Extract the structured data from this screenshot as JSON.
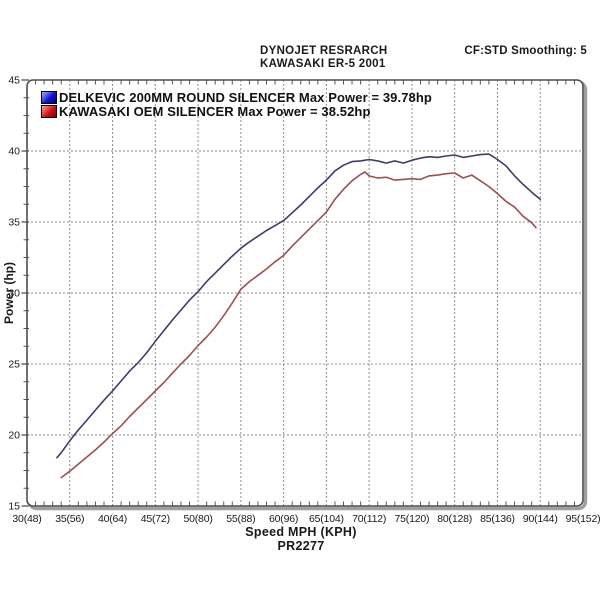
{
  "header": {
    "title_line1": "DYNOJET RESRARCH",
    "title_line2": "KAWASAKI ER-5 2001",
    "top_right_note": "CF:STD Smoothing: 5"
  },
  "footer": {
    "xaxis_title": "Speed MPH (KPH)",
    "run_id": "PR2277"
  },
  "colors": {
    "delkevic_line": "#3d3d66",
    "oem_line": "#9b5151",
    "grid": "#8c8c8c",
    "box_border": "#4f4f4f",
    "box_shadow": "#9e9e9e",
    "text": "#1a1a1a"
  },
  "chart_data": {
    "type": "line",
    "title": "DYNOJET RESRARCH / KAWASAKI ER-5 2001",
    "xlabel": "Speed MPH (KPH)",
    "ylabel": "Power (hp)",
    "xlim": [
      30,
      95
    ],
    "ylim": [
      15,
      45
    ],
    "x_major_step": 5,
    "x_minor_step": 1,
    "y_major_step": 5,
    "y_minors_per_major": 3,
    "grid": "dashed gray at major intervals, both axes",
    "legend_position": "top-left inside plot",
    "x_ticks": [
      {
        "mph": 30,
        "label": "30(48)"
      },
      {
        "mph": 35,
        "label": "35(56)"
      },
      {
        "mph": 40,
        "label": "40(64)"
      },
      {
        "mph": 45,
        "label": "45(72)"
      },
      {
        "mph": 50,
        "label": "50(80)"
      },
      {
        "mph": 55,
        "label": "55(88)"
      },
      {
        "mph": 60,
        "label": "60(96)"
      },
      {
        "mph": 65,
        "label": "65(104)"
      },
      {
        "mph": 70,
        "label": "70(112)"
      },
      {
        "mph": 75,
        "label": "75(120)"
      },
      {
        "mph": 80,
        "label": "80(128)"
      },
      {
        "mph": 85,
        "label": "85(136)"
      },
      {
        "mph": 90,
        "label": "90(144)"
      },
      {
        "mph": 95,
        "label": "95(152)"
      }
    ],
    "y_ticks": [
      15,
      20,
      25,
      30,
      35,
      40,
      45
    ],
    "series": [
      {
        "name": "DELKEVIC 200MM ROUND SILENCER",
        "legend_label": "DELKEVIC 200MM ROUND SILENCER Max Power = 39.78hp",
        "max_power_hp": 39.78,
        "line_color": "#3d3d66",
        "swatch_gradient": [
          "#a8b2ff",
          "#1313cc",
          "#000080"
        ],
        "points": [
          [
            33.5,
            18.4
          ],
          [
            34,
            18.75
          ],
          [
            35,
            19.6
          ],
          [
            36,
            20.35
          ],
          [
            37,
            21.05
          ],
          [
            38,
            21.75
          ],
          [
            39,
            22.45
          ],
          [
            40,
            23.1
          ],
          [
            41,
            23.8
          ],
          [
            42,
            24.5
          ],
          [
            43,
            25.1
          ],
          [
            44,
            25.8
          ],
          [
            45,
            26.6
          ],
          [
            46,
            27.35
          ],
          [
            47,
            28.1
          ],
          [
            48,
            28.8
          ],
          [
            49,
            29.5
          ],
          [
            50,
            30.1
          ],
          [
            51,
            30.8
          ],
          [
            52,
            31.4
          ],
          [
            53,
            32.0
          ],
          [
            54,
            32.6
          ],
          [
            55,
            33.15
          ],
          [
            56,
            33.6
          ],
          [
            57,
            34.0
          ],
          [
            58,
            34.4
          ],
          [
            59,
            34.75
          ],
          [
            60,
            35.1
          ],
          [
            61,
            35.65
          ],
          [
            62,
            36.2
          ],
          [
            63,
            36.8
          ],
          [
            64,
            37.4
          ],
          [
            65,
            37.95
          ],
          [
            66,
            38.6
          ],
          [
            67,
            39.0
          ],
          [
            68,
            39.25
          ],
          [
            69,
            39.3
          ],
          [
            70,
            39.4
          ],
          [
            71,
            39.3
          ],
          [
            72,
            39.15
          ],
          [
            73,
            39.3
          ],
          [
            74,
            39.15
          ],
          [
            75,
            39.35
          ],
          [
            76,
            39.5
          ],
          [
            77,
            39.6
          ],
          [
            78,
            39.55
          ],
          [
            79,
            39.65
          ],
          [
            80,
            39.72
          ],
          [
            81,
            39.55
          ],
          [
            82,
            39.65
          ],
          [
            83,
            39.75
          ],
          [
            84,
            39.78
          ],
          [
            85,
            39.4
          ],
          [
            86,
            38.95
          ],
          [
            87,
            38.25
          ],
          [
            88,
            37.65
          ],
          [
            89,
            37.1
          ],
          [
            90,
            36.6
          ]
        ]
      },
      {
        "name": "KAWASAKI OEM SILENCER",
        "legend_label": "KAWASAKI OEM SILENCER Max Power = 38.52hp",
        "max_power_hp": 38.52,
        "line_color": "#9b5151",
        "swatch_gradient": [
          "#ffa8a8",
          "#cc1313",
          "#800000"
        ],
        "points": [
          [
            34,
            17.0
          ],
          [
            35,
            17.45
          ],
          [
            36,
            17.95
          ],
          [
            37,
            18.45
          ],
          [
            38,
            18.95
          ],
          [
            39,
            19.5
          ],
          [
            40,
            20.1
          ],
          [
            41,
            20.65
          ],
          [
            42,
            21.3
          ],
          [
            43,
            21.9
          ],
          [
            44,
            22.5
          ],
          [
            45,
            23.1
          ],
          [
            46,
            23.7
          ],
          [
            47,
            24.35
          ],
          [
            48,
            25.0
          ],
          [
            49,
            25.6
          ],
          [
            50,
            26.3
          ],
          [
            51,
            26.9
          ],
          [
            52,
            27.6
          ],
          [
            53,
            28.4
          ],
          [
            54,
            29.3
          ],
          [
            55,
            30.25
          ],
          [
            56,
            30.8
          ],
          [
            57,
            31.25
          ],
          [
            58,
            31.7
          ],
          [
            59,
            32.2
          ],
          [
            60,
            32.65
          ],
          [
            61,
            33.3
          ],
          [
            62,
            33.9
          ],
          [
            63,
            34.5
          ],
          [
            64,
            35.1
          ],
          [
            65,
            35.7
          ],
          [
            66,
            36.6
          ],
          [
            67,
            37.3
          ],
          [
            68,
            37.9
          ],
          [
            69,
            38.35
          ],
          [
            69.5,
            38.52
          ],
          [
            70,
            38.25
          ],
          [
            71,
            38.1
          ],
          [
            72,
            38.15
          ],
          [
            73,
            37.95
          ],
          [
            74,
            38.0
          ],
          [
            75,
            38.05
          ],
          [
            76,
            38.0
          ],
          [
            77,
            38.25
          ],
          [
            78,
            38.3
          ],
          [
            79,
            38.4
          ],
          [
            80,
            38.45
          ],
          [
            81,
            38.1
          ],
          [
            82,
            38.3
          ],
          [
            83,
            37.9
          ],
          [
            84,
            37.5
          ],
          [
            85,
            37.0
          ],
          [
            86,
            36.45
          ],
          [
            87,
            36.05
          ],
          [
            88,
            35.4
          ],
          [
            89,
            34.95
          ],
          [
            89.5,
            34.6
          ]
        ]
      }
    ]
  }
}
